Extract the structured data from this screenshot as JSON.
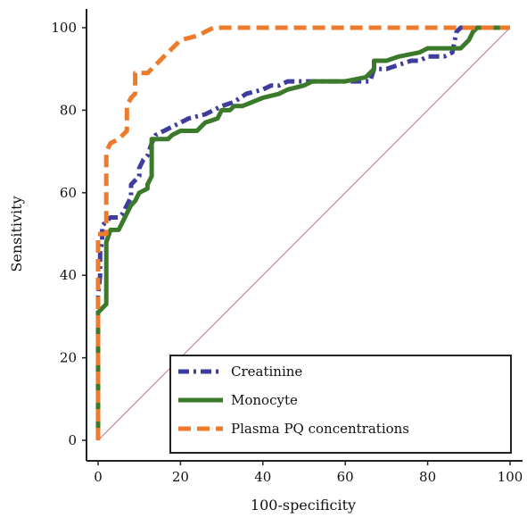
{
  "chart_data": {
    "type": "line",
    "title": "",
    "xlabel": "100-specificity",
    "ylabel": "Sensitivity",
    "xlim": [
      0,
      100
    ],
    "ylim": [
      0,
      100
    ],
    "x_ticks": [
      "0",
      "20",
      "40",
      "60",
      "80",
      "100"
    ],
    "y_ticks": [
      "0",
      "20",
      "40",
      "60",
      "80",
      "100"
    ],
    "grid": false,
    "legend_position": "bottom-right",
    "reference_line": {
      "from": [
        0,
        0
      ],
      "to": [
        100,
        100
      ],
      "color": "#c07890"
    },
    "series": [
      {
        "name": "Creatinine",
        "color": "#3e3d9e",
        "style": "dash-dot",
        "points": [
          [
            0,
            0
          ],
          [
            0,
            26
          ],
          [
            0,
            35
          ],
          [
            0.5,
            40
          ],
          [
            0.5,
            46
          ],
          [
            1,
            48
          ],
          [
            1,
            52
          ],
          [
            2,
            53
          ],
          [
            3,
            54
          ],
          [
            5,
            54
          ],
          [
            6,
            55
          ],
          [
            7,
            57
          ],
          [
            8,
            59
          ],
          [
            8,
            62
          ],
          [
            9,
            63
          ],
          [
            10,
            64
          ],
          [
            10,
            66
          ],
          [
            11,
            68
          ],
          [
            12,
            69
          ],
          [
            13,
            72
          ],
          [
            14,
            74
          ],
          [
            16,
            75
          ],
          [
            18,
            76
          ],
          [
            20,
            77
          ],
          [
            22,
            78
          ],
          [
            26,
            79
          ],
          [
            28,
            80
          ],
          [
            30,
            81
          ],
          [
            33,
            82
          ],
          [
            36,
            84
          ],
          [
            40,
            85
          ],
          [
            42,
            86
          ],
          [
            44,
            86
          ],
          [
            46,
            87
          ],
          [
            50,
            87
          ],
          [
            55,
            87
          ],
          [
            60,
            87
          ],
          [
            64,
            87
          ],
          [
            66,
            87
          ],
          [
            67,
            90
          ],
          [
            70,
            90
          ],
          [
            73,
            91
          ],
          [
            76,
            92
          ],
          [
            78,
            92
          ],
          [
            80,
            93
          ],
          [
            84,
            93
          ],
          [
            86,
            94
          ],
          [
            87,
            99
          ],
          [
            88,
            100
          ],
          [
            100,
            100
          ]
        ]
      },
      {
        "name": "Monocyte",
        "color": "#3a7a2a",
        "style": "solid",
        "points": [
          [
            0,
            0
          ],
          [
            0,
            28
          ],
          [
            0,
            31
          ],
          [
            1,
            32
          ],
          [
            2,
            33
          ],
          [
            2,
            48
          ],
          [
            3,
            51
          ],
          [
            5,
            51
          ],
          [
            6,
            53
          ],
          [
            7,
            55
          ],
          [
            8,
            57
          ],
          [
            9,
            58
          ],
          [
            10,
            60
          ],
          [
            12,
            61
          ],
          [
            12,
            62
          ],
          [
            13,
            64
          ],
          [
            13,
            73
          ],
          [
            17,
            73
          ],
          [
            18,
            74
          ],
          [
            20,
            75
          ],
          [
            24,
            75
          ],
          [
            26,
            77
          ],
          [
            29,
            78
          ],
          [
            30,
            80
          ],
          [
            32,
            80
          ],
          [
            33,
            81
          ],
          [
            35,
            81
          ],
          [
            40,
            83
          ],
          [
            44,
            84
          ],
          [
            46,
            85
          ],
          [
            50,
            86
          ],
          [
            52,
            87
          ],
          [
            55,
            87
          ],
          [
            60,
            87
          ],
          [
            65,
            88
          ],
          [
            67,
            90
          ],
          [
            67,
            92
          ],
          [
            70,
            92
          ],
          [
            73,
            93
          ],
          [
            78,
            94
          ],
          [
            80,
            95
          ],
          [
            86,
            95
          ],
          [
            88,
            95
          ],
          [
            90,
            97
          ],
          [
            91,
            99
          ],
          [
            92,
            100
          ],
          [
            100,
            100
          ]
        ]
      },
      {
        "name": "Plasma PQ concentrations",
        "color": "#ee7a2c",
        "style": "dashed",
        "points": [
          [
            0,
            0
          ],
          [
            0,
            30
          ],
          [
            0,
            50
          ],
          [
            2,
            50
          ],
          [
            2,
            70
          ],
          [
            3,
            72
          ],
          [
            5,
            73
          ],
          [
            6,
            74
          ],
          [
            7,
            75
          ],
          [
            7,
            81
          ],
          [
            8,
            83
          ],
          [
            9,
            84
          ],
          [
            9,
            89
          ],
          [
            12,
            89
          ],
          [
            13,
            90
          ],
          [
            14,
            91
          ],
          [
            16,
            93
          ],
          [
            18,
            95
          ],
          [
            20,
            97
          ],
          [
            24,
            98
          ],
          [
            26,
            99
          ],
          [
            28,
            100
          ],
          [
            100,
            100
          ]
        ]
      }
    ]
  }
}
